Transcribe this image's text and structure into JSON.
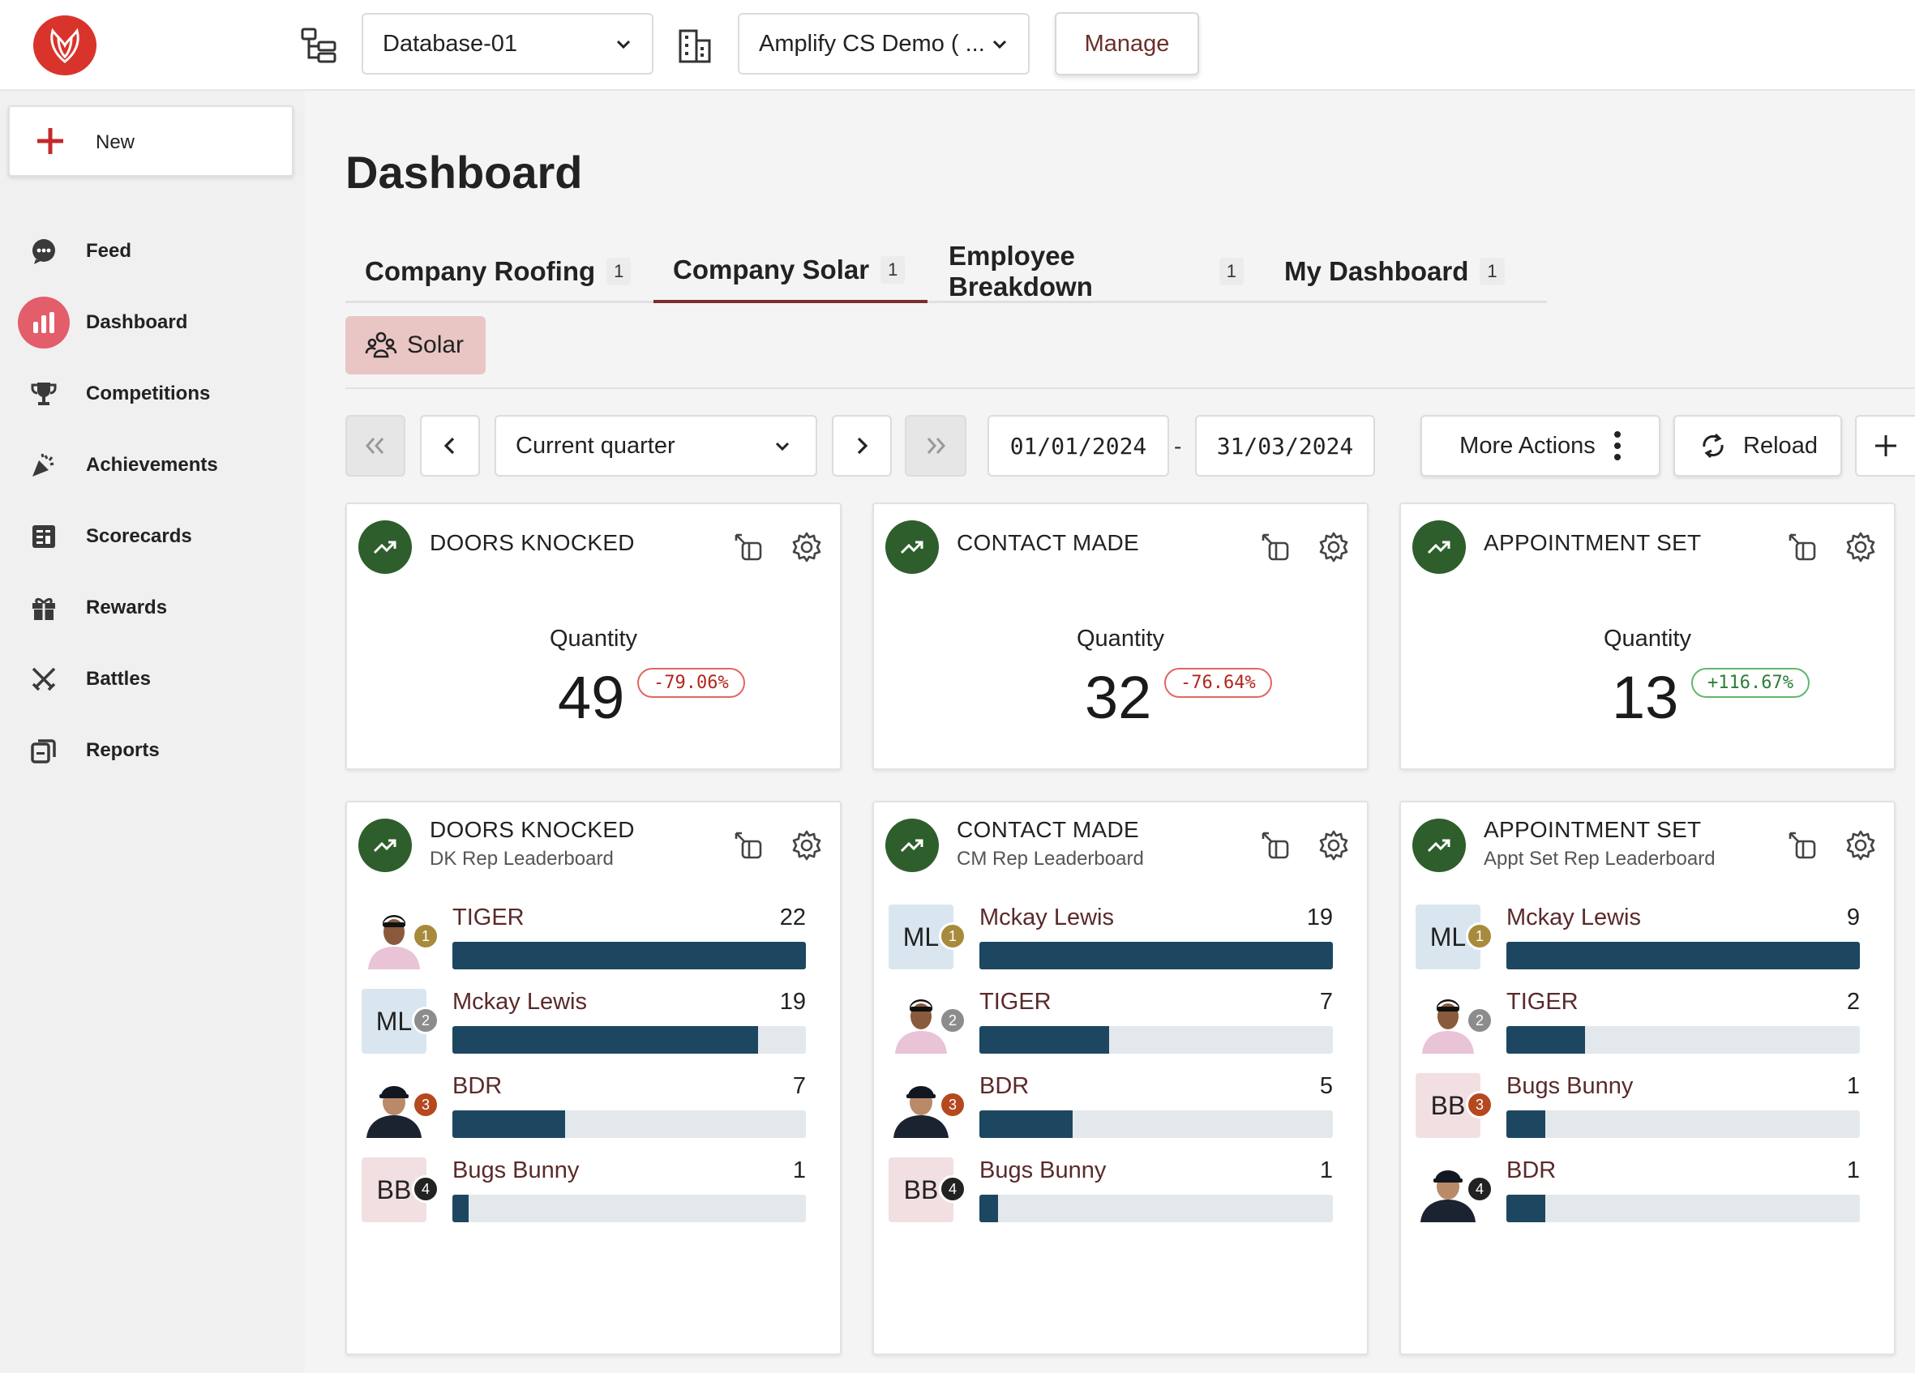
{
  "topbar": {
    "database": "Database-01",
    "company": "Amplify CS Demo ( ...",
    "manage_label": "Manage"
  },
  "sidebar": {
    "new_label": "New",
    "items": [
      {
        "label": "Feed",
        "icon": "chat-bubble-icon"
      },
      {
        "label": "Dashboard",
        "icon": "bar-chart-icon",
        "active": true
      },
      {
        "label": "Competitions",
        "icon": "trophy-icon"
      },
      {
        "label": "Achievements",
        "icon": "party-popper-icon"
      },
      {
        "label": "Scorecards",
        "icon": "scorecard-icon"
      },
      {
        "label": "Rewards",
        "icon": "gift-icon"
      },
      {
        "label": "Battles",
        "icon": "crossed-swords-icon"
      },
      {
        "label": "Reports",
        "icon": "reports-icon"
      }
    ]
  },
  "main": {
    "title": "Dashboard",
    "tabs": [
      {
        "label": "Company Roofing",
        "count": "1"
      },
      {
        "label": "Company Solar",
        "count": "1",
        "active": true
      },
      {
        "label": "Employee Breakdown",
        "count": "1"
      },
      {
        "label": "My Dashboard",
        "count": "1"
      }
    ],
    "group_chip": "Solar",
    "controls": {
      "period": "Current quarter",
      "start_date": "01/01/2024",
      "separator": "-",
      "end_date": "31/03/2024",
      "more_actions": "More Actions",
      "reload": "Reload"
    }
  },
  "metric_cards": [
    {
      "title": "DOORS KNOCKED",
      "qty_label": "Quantity",
      "value": "49",
      "change": "-79.06%",
      "direction": "negative"
    },
    {
      "title": "CONTACT MADE",
      "qty_label": "Quantity",
      "value": "32",
      "change": "-76.64%",
      "direction": "negative"
    },
    {
      "title": "APPOINTMENT SET",
      "qty_label": "Quantity",
      "value": "13",
      "change": "+116.67%",
      "direction": "positive"
    }
  ],
  "leaderboards": [
    {
      "title": "DOORS KNOCKED",
      "subtitle": "DK Rep Leaderboard",
      "rows": [
        {
          "rank": "1",
          "name": "TIGER",
          "score": "22",
          "avatar": "photo-tiger",
          "fill": 1.0
        },
        {
          "rank": "2",
          "name": "Mckay Lewis",
          "score": "19",
          "avatar": "ML",
          "fill": 0.864
        },
        {
          "rank": "3",
          "name": "BDR",
          "score": "7",
          "avatar": "photo-bdr",
          "fill": 0.318
        },
        {
          "rank": "4",
          "name": "Bugs Bunny",
          "score": "1",
          "avatar": "BB",
          "fill": 0.045
        }
      ]
    },
    {
      "title": "CONTACT MADE",
      "subtitle": "CM Rep Leaderboard",
      "rows": [
        {
          "rank": "1",
          "name": "Mckay Lewis",
          "score": "19",
          "avatar": "ML",
          "fill": 1.0
        },
        {
          "rank": "2",
          "name": "TIGER",
          "score": "7",
          "avatar": "photo-tiger",
          "fill": 0.368
        },
        {
          "rank": "3",
          "name": "BDR",
          "score": "5",
          "avatar": "photo-bdr",
          "fill": 0.263
        },
        {
          "rank": "4",
          "name": "Bugs Bunny",
          "score": "1",
          "avatar": "BB",
          "fill": 0.053
        }
      ]
    },
    {
      "title": "APPOINTMENT SET",
      "subtitle": "Appt Set Rep Leaderboard",
      "rows": [
        {
          "rank": "1",
          "name": "Mckay Lewis",
          "score": "9",
          "avatar": "ML",
          "fill": 1.0
        },
        {
          "rank": "2",
          "name": "TIGER",
          "score": "2",
          "avatar": "photo-tiger",
          "fill": 0.222
        },
        {
          "rank": "3",
          "name": "Bugs Bunny",
          "score": "1",
          "avatar": "BB",
          "fill": 0.111
        },
        {
          "rank": "4",
          "name": "BDR",
          "score": "1",
          "avatar": "photo-bdr",
          "fill": 0.111
        }
      ]
    }
  ],
  "colors": {
    "brand": "#d9342b",
    "accent_tab": "#7a2f2a",
    "bar": "#1d4760",
    "trend": "#2e5e2c",
    "negative": "#b3261e",
    "positive": "#2d7d3a"
  }
}
